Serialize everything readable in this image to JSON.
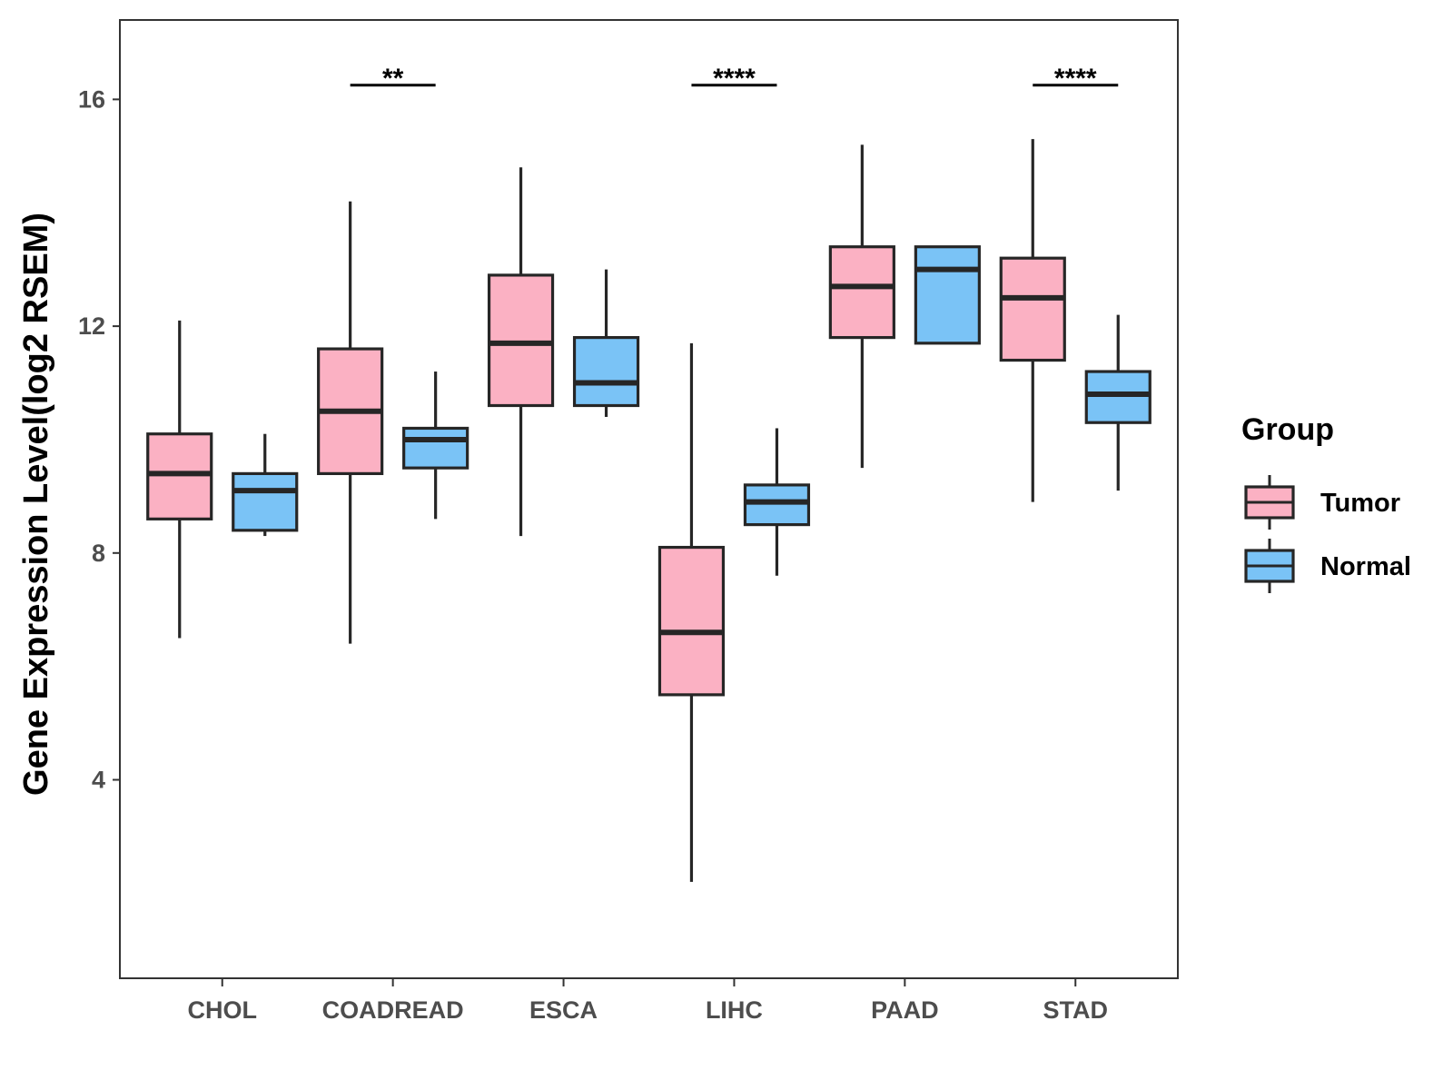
{
  "chart_data": {
    "type": "boxplot",
    "ylabel": "Gene Expression Level(log2 RSEM)",
    "xlabel": "",
    "ylim": [
      0.5,
      17.4
    ],
    "yticks": [
      4,
      8,
      12,
      16
    ],
    "grid": false,
    "legend": {
      "title": "Group",
      "placement": "right",
      "entries": [
        {
          "name": "Tumor",
          "color": "#fbb1c3"
        },
        {
          "name": "Normal",
          "color": "#7ac3f6"
        }
      ]
    },
    "categories": [
      "CHOL",
      "COADREAD",
      "ESCA",
      "LIHC",
      "PAAD",
      "STAD"
    ],
    "series": [
      {
        "name": "Tumor",
        "color": "#fbb1c3",
        "boxes": [
          {
            "min": 6.5,
            "q1": 8.6,
            "median": 9.4,
            "q3": 10.1,
            "max": 12.1
          },
          {
            "min": 6.4,
            "q1": 9.4,
            "median": 10.5,
            "q3": 11.6,
            "max": 14.2
          },
          {
            "min": 8.3,
            "q1": 10.6,
            "median": 11.7,
            "q3": 12.9,
            "max": 14.8
          },
          {
            "min": 2.2,
            "q1": 5.5,
            "median": 6.6,
            "q3": 8.1,
            "max": 11.7
          },
          {
            "min": 9.5,
            "q1": 11.8,
            "median": 12.7,
            "q3": 13.4,
            "max": 15.2
          },
          {
            "min": 8.9,
            "q1": 11.4,
            "median": 12.5,
            "q3": 13.2,
            "max": 15.3
          }
        ]
      },
      {
        "name": "Normal",
        "color": "#7ac3f6",
        "boxes": [
          {
            "min": 8.3,
            "q1": 8.4,
            "median": 9.1,
            "q3": 9.4,
            "max": 10.1
          },
          {
            "min": 8.6,
            "q1": 9.5,
            "median": 10.0,
            "q3": 10.2,
            "max": 11.2
          },
          {
            "min": 10.4,
            "q1": 10.6,
            "median": 11.0,
            "q3": 11.8,
            "max": 13.0
          },
          {
            "min": 7.6,
            "q1": 8.5,
            "median": 8.9,
            "q3": 9.2,
            "max": 10.2
          },
          {
            "min": 11.7,
            "q1": 11.7,
            "median": 13.0,
            "q3": 13.4,
            "max": 13.4
          },
          {
            "min": 9.1,
            "q1": 10.3,
            "median": 10.8,
            "q3": 11.2,
            "max": 12.2
          }
        ]
      }
    ],
    "annotations": [
      {
        "category": "COADREAD",
        "label": "**",
        "y": 16.25
      },
      {
        "category": "LIHC",
        "label": "****",
        "y": 16.25
      },
      {
        "category": "STAD",
        "label": "****",
        "y": 16.25
      }
    ]
  }
}
